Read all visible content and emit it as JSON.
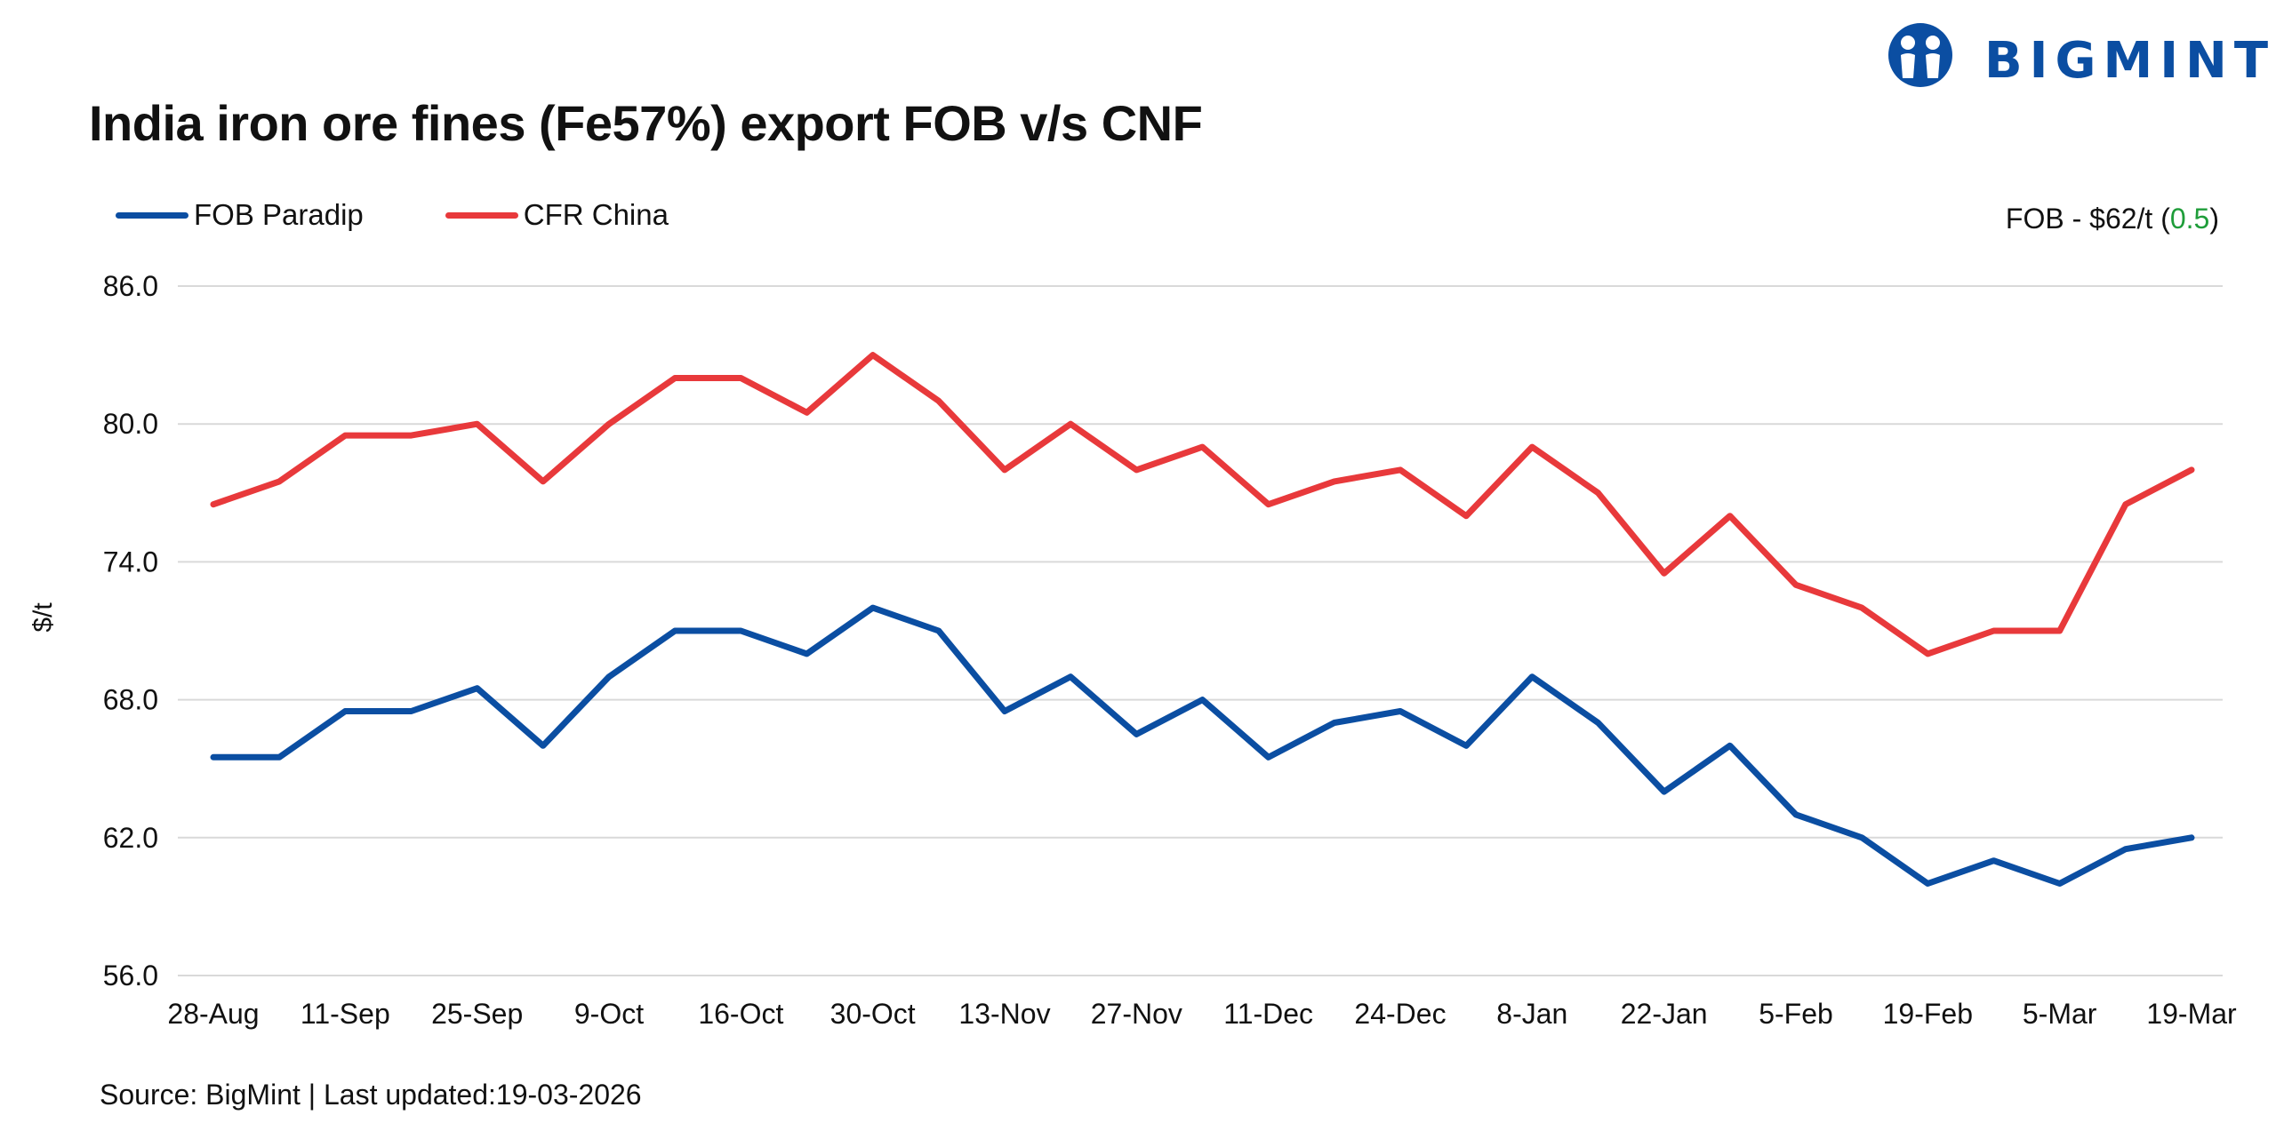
{
  "brand": {
    "name": "BIGMINT",
    "color": "#0b4ea2",
    "logo_icon": "people-circle-icon"
  },
  "annotation": {
    "prefix": "FOB - $62/t (",
    "change": "0.5",
    "suffix": ")",
    "change_color": "#1f9d3a"
  },
  "footer": {
    "source": "Source: BigMint | Last updated:19-03-2026"
  },
  "chart_data": {
    "type": "line",
    "title": "India iron ore fines (Fe57%) export FOB v/s CNF",
    "xlabel": "",
    "ylabel": "$/t",
    "ylim": [
      56,
      86
    ],
    "yticks": [
      "86.0",
      "80.0",
      "74.0",
      "68.0",
      "62.0",
      "56.0"
    ],
    "ytick_values": [
      86,
      80,
      74,
      68,
      62,
      56
    ],
    "grid": true,
    "legend_position": "top-left",
    "x_tick_labels": [
      "28-Aug",
      "11-Sep",
      "25-Sep",
      "9-Oct",
      "16-Oct",
      "30-Oct",
      "13-Nov",
      "27-Nov",
      "11-Dec",
      "24-Dec",
      "8-Jan",
      "22-Jan",
      "5-Feb",
      "19-Feb",
      "5-Mar",
      "19-Mar"
    ],
    "point_count": 31,
    "series": [
      {
        "name": "FOB Paradip",
        "color": "#0b4ea2",
        "values": [
          65.5,
          65.5,
          67.5,
          67.5,
          68.5,
          66.0,
          69.0,
          71.0,
          71.0,
          70.0,
          72.0,
          71.0,
          67.5,
          69.0,
          66.5,
          68.0,
          65.5,
          67.0,
          67.5,
          66.0,
          69.0,
          67.0,
          64.0,
          66.0,
          63.0,
          62.0,
          60.0,
          61.0,
          60.0,
          61.5,
          62.0
        ]
      },
      {
        "name": "CFR China",
        "color": "#e8393b",
        "values": [
          76.5,
          77.5,
          79.5,
          79.5,
          80.0,
          77.5,
          80.0,
          82.0,
          82.0,
          80.5,
          83.0,
          81.0,
          78.0,
          80.0,
          78.0,
          79.0,
          76.5,
          77.5,
          78.0,
          76.0,
          79.0,
          77.0,
          73.5,
          76.0,
          73.0,
          72.0,
          70.0,
          71.0,
          71.0,
          76.5,
          78.0
        ]
      }
    ]
  }
}
